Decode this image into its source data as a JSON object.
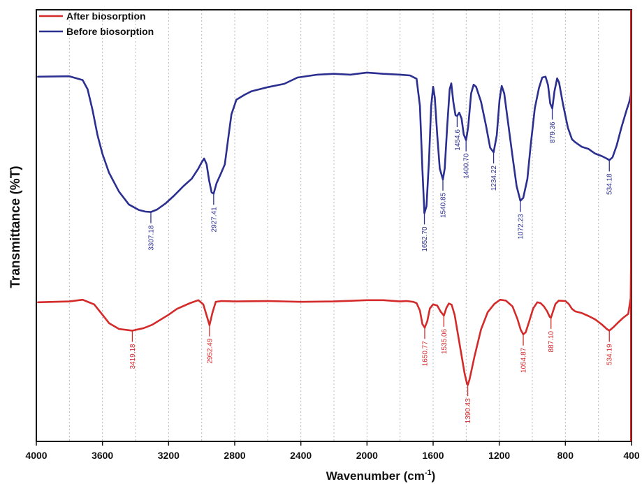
{
  "chart_data": {
    "type": "line",
    "title": "",
    "xlabel": "Wavenumber (cm⁻¹)",
    "ylabel": "Transmittance (%T)",
    "xlim": [
      4000,
      400
    ],
    "x_reversed": true,
    "x_ticks": [
      4000,
      3600,
      3200,
      2800,
      2400,
      2000,
      1600,
      1200,
      800,
      400
    ],
    "y_ticks_shown": false,
    "ylim": [
      0,
      100
    ],
    "grid": "vertical dotted",
    "legend_placement": "top-left",
    "series": [
      {
        "name": "After biosorption",
        "color": "#d42a2a",
        "points": [
          [
            3990,
            38
          ],
          [
            3800,
            38.2
          ],
          [
            3720,
            38.6
          ],
          [
            3650,
            37.5
          ],
          [
            3600,
            35
          ],
          [
            3560,
            33
          ],
          [
            3500,
            31.6
          ],
          [
            3419.18,
            31.2
          ],
          [
            3350,
            31.8
          ],
          [
            3300,
            32.6
          ],
          [
            3200,
            35
          ],
          [
            3150,
            36.4
          ],
          [
            3070,
            37.8
          ],
          [
            3020,
            38.5
          ],
          [
            2990,
            37.5
          ],
          [
            2975,
            35.5
          ],
          [
            2952.49,
            32.5
          ],
          [
            2935,
            35.5
          ],
          [
            2915,
            38.1
          ],
          [
            2880,
            38.3
          ],
          [
            2800,
            38.2
          ],
          [
            2600,
            38.3
          ],
          [
            2400,
            38.1
          ],
          [
            2200,
            38.2
          ],
          [
            2000,
            38.5
          ],
          [
            1900,
            38.5
          ],
          [
            1800,
            38.2
          ],
          [
            1760,
            38.3
          ],
          [
            1720,
            38.1
          ],
          [
            1700,
            37.8
          ],
          [
            1680,
            36
          ],
          [
            1665,
            32.8
          ],
          [
            1650.77,
            31.9
          ],
          [
            1635,
            33.5
          ],
          [
            1620,
            36.5
          ],
          [
            1600,
            37.5
          ],
          [
            1575,
            37.2
          ],
          [
            1555,
            35.8
          ],
          [
            1535.06,
            34.8
          ],
          [
            1520,
            36.6
          ],
          [
            1505,
            37.7
          ],
          [
            1488,
            37.4
          ],
          [
            1470,
            35
          ],
          [
            1440,
            28
          ],
          [
            1410,
            21
          ],
          [
            1395,
            18.5
          ],
          [
            1390.43,
            18.2
          ],
          [
            1380,
            19.5
          ],
          [
            1350,
            25
          ],
          [
            1310,
            31.5
          ],
          [
            1270,
            35.6
          ],
          [
            1230,
            37.6
          ],
          [
            1195,
            38.6
          ],
          [
            1160,
            38.4
          ],
          [
            1120,
            37
          ],
          [
            1090,
            34
          ],
          [
            1070,
            31.4
          ],
          [
            1054.87,
            30.3
          ],
          [
            1040,
            30.8
          ],
          [
            1020,
            33.3
          ],
          [
            995,
            36.5
          ],
          [
            970,
            38
          ],
          [
            950,
            37.8
          ],
          [
            930,
            37
          ],
          [
            910,
            35.8
          ],
          [
            895,
            34.5
          ],
          [
            887.1,
            34.3
          ],
          [
            875,
            35.8
          ],
          [
            860,
            37.6
          ],
          [
            840,
            38.4
          ],
          [
            800,
            38.3
          ],
          [
            780,
            37.6
          ],
          [
            760,
            36.4
          ],
          [
            740,
            35.8
          ],
          [
            700,
            35.4
          ],
          [
            660,
            34.7
          ],
          [
            620,
            33.9
          ],
          [
            580,
            32.7
          ],
          [
            550,
            31.6
          ],
          [
            534.19,
            31.2
          ],
          [
            510,
            32
          ],
          [
            480,
            33.2
          ],
          [
            450,
            34.3
          ],
          [
            420,
            35.2
          ],
          [
            405,
            39
          ],
          [
            402,
            50
          ]
        ],
        "peak_labels": [
          3419.18,
          2952.49,
          1650.77,
          1535.06,
          1390.43,
          1054.87,
          887.1,
          534.19
        ],
        "peak_label_text": [
          "3419.18",
          "2952.49",
          "1650.77",
          "1535.06",
          "1390.43",
          "1054.87",
          "887.10",
          "534.19"
        ]
      },
      {
        "name": "Before biosorption",
        "color": "#2b2f8f",
        "points": [
          [
            3990,
            92
          ],
          [
            3800,
            92.1
          ],
          [
            3720,
            91.2
          ],
          [
            3690,
            89
          ],
          [
            3660,
            84
          ],
          [
            3630,
            78
          ],
          [
            3600,
            73.5
          ],
          [
            3560,
            69
          ],
          [
            3500,
            64.5
          ],
          [
            3440,
            61.4
          ],
          [
            3380,
            60.1
          ],
          [
            3340,
            59.7
          ],
          [
            3307.18,
            59.6
          ],
          [
            3270,
            60.2
          ],
          [
            3220,
            61.6
          ],
          [
            3170,
            63.4
          ],
          [
            3110,
            65.8
          ],
          [
            3060,
            67.6
          ],
          [
            3020,
            70
          ],
          [
            3000,
            71.5
          ],
          [
            2985,
            72.4
          ],
          [
            2970,
            71
          ],
          [
            2955,
            67.2
          ],
          [
            2940,
            64.3
          ],
          [
            2927.41,
            64
          ],
          [
            2910,
            66.5
          ],
          [
            2885,
            68.7
          ],
          [
            2860,
            71
          ],
          [
            2840,
            77
          ],
          [
            2820,
            83
          ],
          [
            2790,
            86.5
          ],
          [
            2740,
            87.7
          ],
          [
            2700,
            88.5
          ],
          [
            2600,
            89.5
          ],
          [
            2500,
            90.3
          ],
          [
            2420,
            91.8
          ],
          [
            2300,
            92.5
          ],
          [
            2200,
            92.7
          ],
          [
            2100,
            92.5
          ],
          [
            2000,
            93
          ],
          [
            1900,
            92.7
          ],
          [
            1800,
            92.5
          ],
          [
            1740,
            92.3
          ],
          [
            1700,
            91.5
          ],
          [
            1680,
            85
          ],
          [
            1665,
            70
          ],
          [
            1652.7,
            59.3
          ],
          [
            1640,
            61
          ],
          [
            1625,
            72
          ],
          [
            1612,
            85
          ],
          [
            1600,
            89.6
          ],
          [
            1590,
            87
          ],
          [
            1575,
            78
          ],
          [
            1560,
            70
          ],
          [
            1540.85,
            67.4
          ],
          [
            1530,
            70
          ],
          [
            1515,
            80
          ],
          [
            1500,
            89
          ],
          [
            1490,
            90.4
          ],
          [
            1478,
            86
          ],
          [
            1465,
            82.8
          ],
          [
            1454.6,
            82.6
          ],
          [
            1442,
            83.4
          ],
          [
            1428,
            82
          ],
          [
            1415,
            78.2
          ],
          [
            1400.7,
            76.8
          ],
          [
            1388,
            80
          ],
          [
            1370,
            88
          ],
          [
            1355,
            90.1
          ],
          [
            1340,
            89.6
          ],
          [
            1310,
            86
          ],
          [
            1280,
            80.3
          ],
          [
            1255,
            75
          ],
          [
            1234.22,
            73.9
          ],
          [
            1215,
            78
          ],
          [
            1198,
            86.5
          ],
          [
            1185,
            89.8
          ],
          [
            1170,
            88
          ],
          [
            1150,
            82
          ],
          [
            1120,
            73
          ],
          [
            1095,
            65.8
          ],
          [
            1072.23,
            62.3
          ],
          [
            1055,
            63
          ],
          [
            1030,
            67.5
          ],
          [
            1010,
            75.5
          ],
          [
            985,
            84.5
          ],
          [
            960,
            89.3
          ],
          [
            940,
            91.8
          ],
          [
            920,
            92
          ],
          [
            905,
            90
          ],
          [
            892,
            85.6
          ],
          [
            879.36,
            84.4
          ],
          [
            866,
            88.5
          ],
          [
            850,
            91.6
          ],
          [
            838,
            90.6
          ],
          [
            815,
            85.5
          ],
          [
            785,
            79.8
          ],
          [
            760,
            77
          ],
          [
            740,
            76.3
          ],
          [
            700,
            75.2
          ],
          [
            660,
            74.7
          ],
          [
            620,
            73.6
          ],
          [
            580,
            73
          ],
          [
            550,
            72.4
          ],
          [
            534.18,
            72
          ],
          [
            515,
            72.7
          ],
          [
            490,
            75.5
          ],
          [
            460,
            80
          ],
          [
            430,
            84
          ],
          [
            415,
            85.8
          ],
          [
            405,
            87.5
          ],
          [
            402,
            89
          ]
        ],
        "peak_labels": [
          3307.18,
          2927.41,
          1652.7,
          1540.85,
          1454.6,
          1400.7,
          1234.22,
          1072.23,
          879.36,
          534.18
        ],
        "peak_label_text": [
          "3307.18",
          "2927.41",
          "1652.70",
          "1540.85",
          "1454.6",
          "1400.70",
          "1234.22",
          "1072.23",
          "879.36",
          "534.18"
        ]
      }
    ]
  },
  "legend": {
    "items": [
      {
        "label": "After biosorption",
        "color": "#d42a2a"
      },
      {
        "label": "Before biosorption",
        "color": "#2b2f8f"
      }
    ]
  },
  "axes": {
    "xlabel_main": "Wavenumber (cm",
    "xlabel_sup": "-1",
    "xlabel_end": ")",
    "ylabel": "Transmittance (%T)"
  },
  "colors": {
    "frame": "#111111",
    "grid": "#b8b8b8",
    "right_marker": "#d42a2a"
  }
}
